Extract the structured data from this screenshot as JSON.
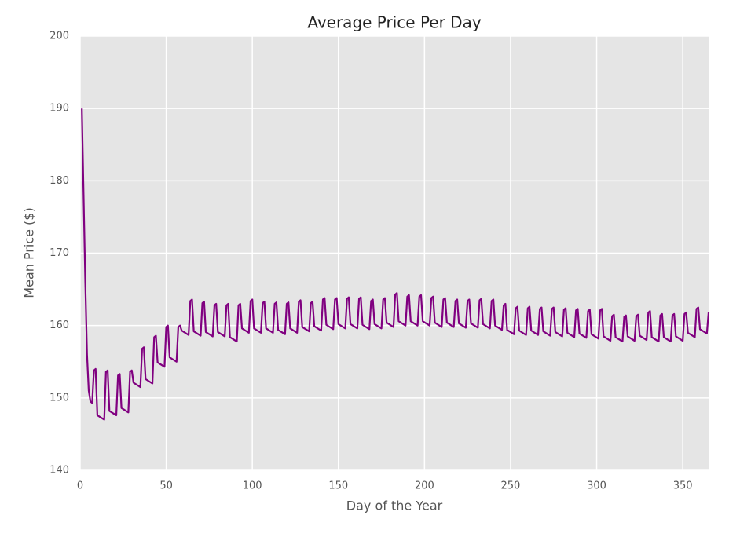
{
  "chart_data": {
    "type": "line",
    "title": "Average Price Per Day",
    "x_label": "Day of the Year",
    "y_label": "Mean Price ($)",
    "color": "#800080",
    "grid": true,
    "xlim": [
      0,
      365
    ],
    "ylim": [
      140,
      200
    ],
    "xticks": [
      0,
      50,
      100,
      150,
      200,
      250,
      300,
      350
    ],
    "yticks": [
      140,
      150,
      160,
      170,
      180,
      190,
      200
    ],
    "x": [
      1,
      2,
      3,
      4,
      5,
      6,
      7,
      8,
      9,
      10,
      14,
      15,
      16,
      17,
      21,
      22,
      23,
      24,
      28,
      29,
      30,
      31,
      35,
      36,
      37,
      38,
      42,
      43,
      44,
      45,
      49,
      50,
      51,
      52,
      56,
      57,
      58,
      59,
      63,
      64,
      65,
      66,
      70,
      71,
      72,
      73,
      77,
      78,
      79,
      80,
      84,
      85,
      86,
      87,
      91,
      92,
      93,
      94,
      98,
      99,
      100,
      101,
      105,
      106,
      107,
      108,
      112,
      113,
      114,
      115,
      119,
      120,
      121,
      122,
      126,
      127,
      128,
      129,
      133,
      134,
      135,
      136,
      140,
      141,
      142,
      143,
      147,
      148,
      149,
      150,
      154,
      155,
      156,
      157,
      161,
      162,
      163,
      164,
      168,
      169,
      170,
      171,
      175,
      176,
      177,
      178,
      182,
      183,
      184,
      185,
      189,
      190,
      191,
      192,
      196,
      197,
      198,
      199,
      203,
      204,
      205,
      206,
      210,
      211,
      212,
      213,
      217,
      218,
      219,
      220,
      224,
      225,
      226,
      227,
      231,
      232,
      233,
      234,
      238,
      239,
      240,
      241,
      245,
      246,
      247,
      248,
      252,
      253,
      254,
      255,
      259,
      260,
      261,
      262,
      266,
      267,
      268,
      269,
      273,
      274,
      275,
      276,
      280,
      281,
      282,
      283,
      287,
      288,
      289,
      290,
      294,
      295,
      296,
      297,
      301,
      302,
      303,
      304,
      308,
      309,
      310,
      311,
      315,
      316,
      317,
      318,
      322,
      323,
      324,
      325,
      329,
      330,
      331,
      332,
      336,
      337,
      338,
      339,
      343,
      344,
      345,
      346,
      350,
      351,
      352,
      353,
      357,
      358,
      359,
      360,
      364,
      365
    ],
    "values": [
      190,
      178,
      166,
      156,
      151,
      149.5,
      149.3,
      153.8,
      154.0,
      147.6,
      147.0,
      153.6,
      153.8,
      148.2,
      147.6,
      153.1,
      153.3,
      148.6,
      148.0,
      153.6,
      153.8,
      152.1,
      151.5,
      156.8,
      157.0,
      152.6,
      152.0,
      158.4,
      158.6,
      154.9,
      154.3,
      159.8,
      160.0,
      155.6,
      155.0,
      159.8,
      160.0,
      159.3,
      158.7,
      163.4,
      163.6,
      159.2,
      158.6,
      163.1,
      163.3,
      159.1,
      158.5,
      162.8,
      163.0,
      159.1,
      158.5,
      162.8,
      163.0,
      158.4,
      157.8,
      162.8,
      163.0,
      159.6,
      159.0,
      163.4,
      163.6,
      159.6,
      159.0,
      163.1,
      163.3,
      159.6,
      159.0,
      163.0,
      163.2,
      159.4,
      158.8,
      163.0,
      163.2,
      159.6,
      159.0,
      163.3,
      163.5,
      159.8,
      159.2,
      163.1,
      163.3,
      159.9,
      159.3,
      163.6,
      163.8,
      160.1,
      159.5,
      163.6,
      163.8,
      160.2,
      159.6,
      163.7,
      163.9,
      160.2,
      159.6,
      163.7,
      163.9,
      160.1,
      159.5,
      163.4,
      163.6,
      160.2,
      159.6,
      163.6,
      163.8,
      160.4,
      159.8,
      164.3,
      164.5,
      160.6,
      160.0,
      164.0,
      164.2,
      160.6,
      160.0,
      164.0,
      164.2,
      160.6,
      160.0,
      163.8,
      164.0,
      160.4,
      159.8,
      163.6,
      163.8,
      160.4,
      159.8,
      163.4,
      163.6,
      160.3,
      159.7,
      163.4,
      163.6,
      160.3,
      159.7,
      163.5,
      163.7,
      160.2,
      159.6,
      163.4,
      163.6,
      160.0,
      159.4,
      162.8,
      163.0,
      159.4,
      158.8,
      162.4,
      162.6,
      159.3,
      158.7,
      162.4,
      162.6,
      159.3,
      158.7,
      162.3,
      162.5,
      159.2,
      158.6,
      162.3,
      162.5,
      159.1,
      158.5,
      162.2,
      162.4,
      159.0,
      158.4,
      162.1,
      162.3,
      158.9,
      158.3,
      162.0,
      162.2,
      158.8,
      158.2,
      162.1,
      162.3,
      158.5,
      157.9,
      161.3,
      161.5,
      158.4,
      157.8,
      161.2,
      161.4,
      158.5,
      157.9,
      161.3,
      161.5,
      158.6,
      158.0,
      161.8,
      162.0,
      158.4,
      157.8,
      161.4,
      161.6,
      158.4,
      157.8,
      161.4,
      161.6,
      158.5,
      157.9,
      161.6,
      161.8,
      159.0,
      158.4,
      162.3,
      162.5,
      159.5,
      158.9,
      161.8
    ]
  }
}
